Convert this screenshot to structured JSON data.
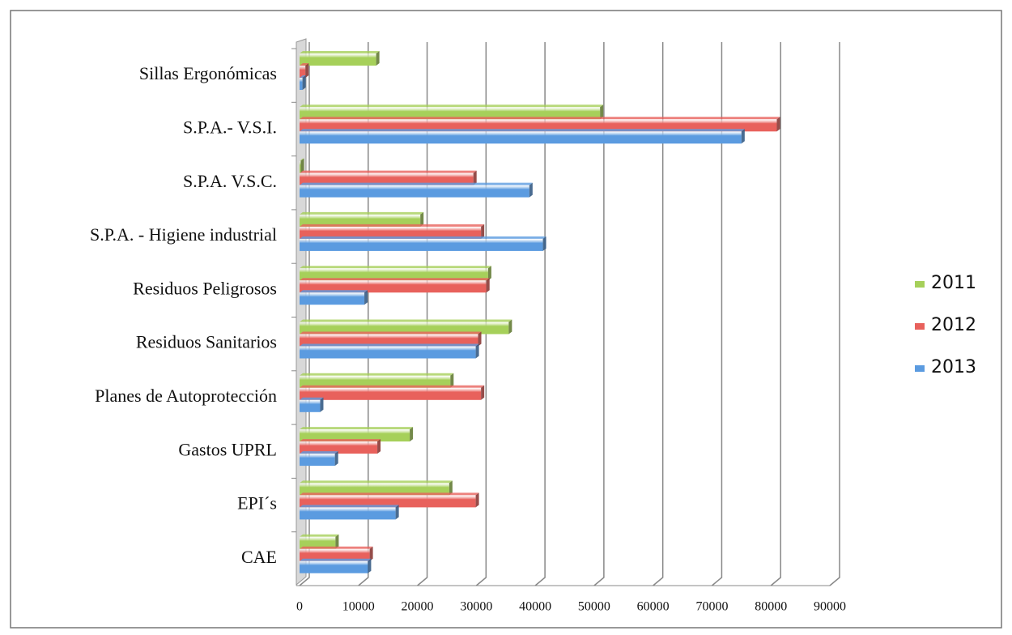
{
  "chart_data": {
    "type": "bar",
    "orientation": "horizontal",
    "categories": [
      "CAE",
      "EPI´s",
      "Gastos UPRL",
      "Planes de Autoprotección",
      "Residuos Sanitarios",
      "Residuos Peligrosos",
      "S.P.A. - Higiene industrial",
      "S.P.A. V.S.C.",
      "S.P.A.- V.S.I.",
      "Sillas Ergonómicas"
    ],
    "series": [
      {
        "name": "2011",
        "color": "#a6d05a",
        "values": [
          6100,
          25400,
          18700,
          25600,
          35500,
          32000,
          20500,
          200,
          51000,
          13000
        ]
      },
      {
        "name": "2012",
        "color": "#e8615c",
        "values": [
          11900,
          29900,
          13200,
          30800,
          30300,
          31700,
          30800,
          29500,
          81000,
          1000
        ]
      },
      {
        "name": "2013",
        "color": "#5b9be0",
        "values": [
          11600,
          16300,
          6000,
          3500,
          29900,
          11000,
          41300,
          39000,
          75000,
          500
        ]
      }
    ],
    "xlim": [
      0,
      90000
    ],
    "xticks": [
      0,
      10000,
      20000,
      30000,
      40000,
      50000,
      60000,
      70000,
      80000,
      90000
    ],
    "grid": true,
    "legend": "right"
  }
}
